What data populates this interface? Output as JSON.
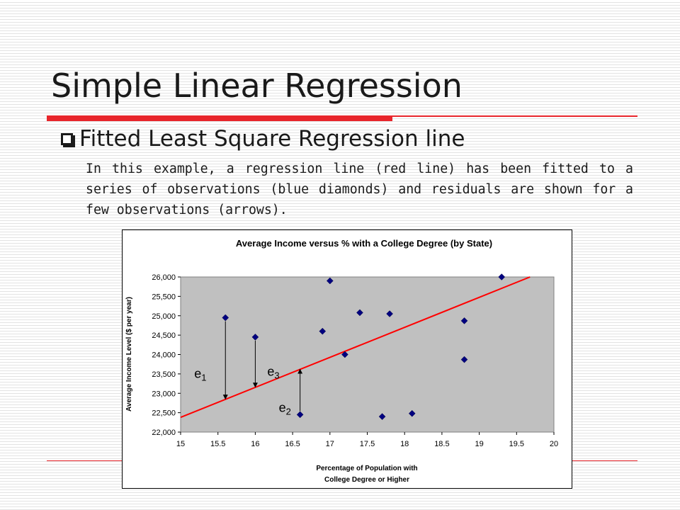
{
  "slide": {
    "title": "Simple Linear Regression",
    "bullet": "Fitted Least Square Regression line",
    "paragraph": "In this example, a regression line (red line) has been fitted to a series of observations (blue diamonds) and residuals are shown for a few observations (arrows)."
  },
  "chart_data": {
    "type": "scatter",
    "title": "Average Income versus % with a College Degree (by State)",
    "xlabel_lines": [
      "Percentage of Population with",
      "College Degree or Higher"
    ],
    "ylabel": "Average Income Level ($ per year)",
    "xlim": [
      15,
      20
    ],
    "ylim": [
      22000,
      26000
    ],
    "x_ticks": [
      "15",
      "15.5",
      "16",
      "16.5",
      "17",
      "17.5",
      "18",
      "18.5",
      "19",
      "19.5",
      "20"
    ],
    "y_ticks": [
      "22,000",
      "22,500",
      "23,000",
      "23,500",
      "24,000",
      "24,500",
      "25,000",
      "25,500",
      "26,000"
    ],
    "grid": false,
    "plot_background": "#c0c0c0",
    "point_color": "#000080",
    "line_color": "#ff0000",
    "points": [
      {
        "x": 15.6,
        "y": 24950
      },
      {
        "x": 16.0,
        "y": 24450
      },
      {
        "x": 16.6,
        "y": 22450
      },
      {
        "x": 16.9,
        "y": 24600
      },
      {
        "x": 17.0,
        "y": 25900
      },
      {
        "x": 17.2,
        "y": 24000
      },
      {
        "x": 17.4,
        "y": 25080
      },
      {
        "x": 17.7,
        "y": 22400
      },
      {
        "x": 17.8,
        "y": 25050
      },
      {
        "x": 18.1,
        "y": 22480
      },
      {
        "x": 18.8,
        "y": 24870
      },
      {
        "x": 18.8,
        "y": 23870
      },
      {
        "x": 19.3,
        "y": 26000
      }
    ],
    "regression_line": {
      "x0": 15,
      "y0": 22380,
      "x1": 19.68,
      "y1": 26000
    },
    "residuals": [
      {
        "label": "e",
        "sub": "1",
        "x": 15.6,
        "from": 24950,
        "to": 22850
      },
      {
        "label": "e",
        "sub": "3",
        "x": 16.0,
        "from": 24450,
        "to": 23160
      },
      {
        "label": "e",
        "sub": "2",
        "x": 16.6,
        "from": 22450,
        "to": 23620
      }
    ]
  }
}
